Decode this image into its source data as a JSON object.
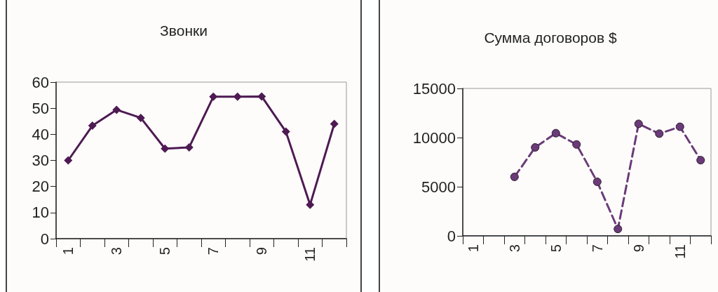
{
  "chart_data": [
    {
      "type": "line",
      "title": "Звонки",
      "categories": [
        "1",
        null,
        "3",
        null,
        "5",
        null,
        "7",
        null,
        "9",
        null,
        "11",
        null
      ],
      "series": [
        {
          "color": "#4e1a52",
          "values": [
            30,
            43.3,
            49.4,
            46.3,
            34.5,
            35,
            54.4,
            54.4,
            54.5,
            41,
            13,
            44
          ]
        }
      ],
      "ylim": [
        0,
        60
      ],
      "yticks": [
        0,
        10,
        20,
        30,
        40,
        50,
        60
      ],
      "grid": false,
      "marker": "diamond",
      "line_style": "solid"
    },
    {
      "type": "line",
      "title": "Сумма договоров $",
      "categories": [
        "1",
        null,
        "3",
        null,
        "5",
        null,
        "7",
        null,
        "9",
        null,
        "11",
        null
      ],
      "series": [
        {
          "color": "#6a3b78",
          "values": [
            null,
            null,
            6000,
            9000,
            10450,
            9300,
            5500,
            700,
            11400,
            10400,
            11100,
            7700
          ]
        }
      ],
      "ylim": [
        0,
        15000
      ],
      "yticks": [
        0,
        5000,
        10000,
        15000
      ],
      "grid": false,
      "marker": "circle",
      "line_style": "dashed"
    }
  ]
}
